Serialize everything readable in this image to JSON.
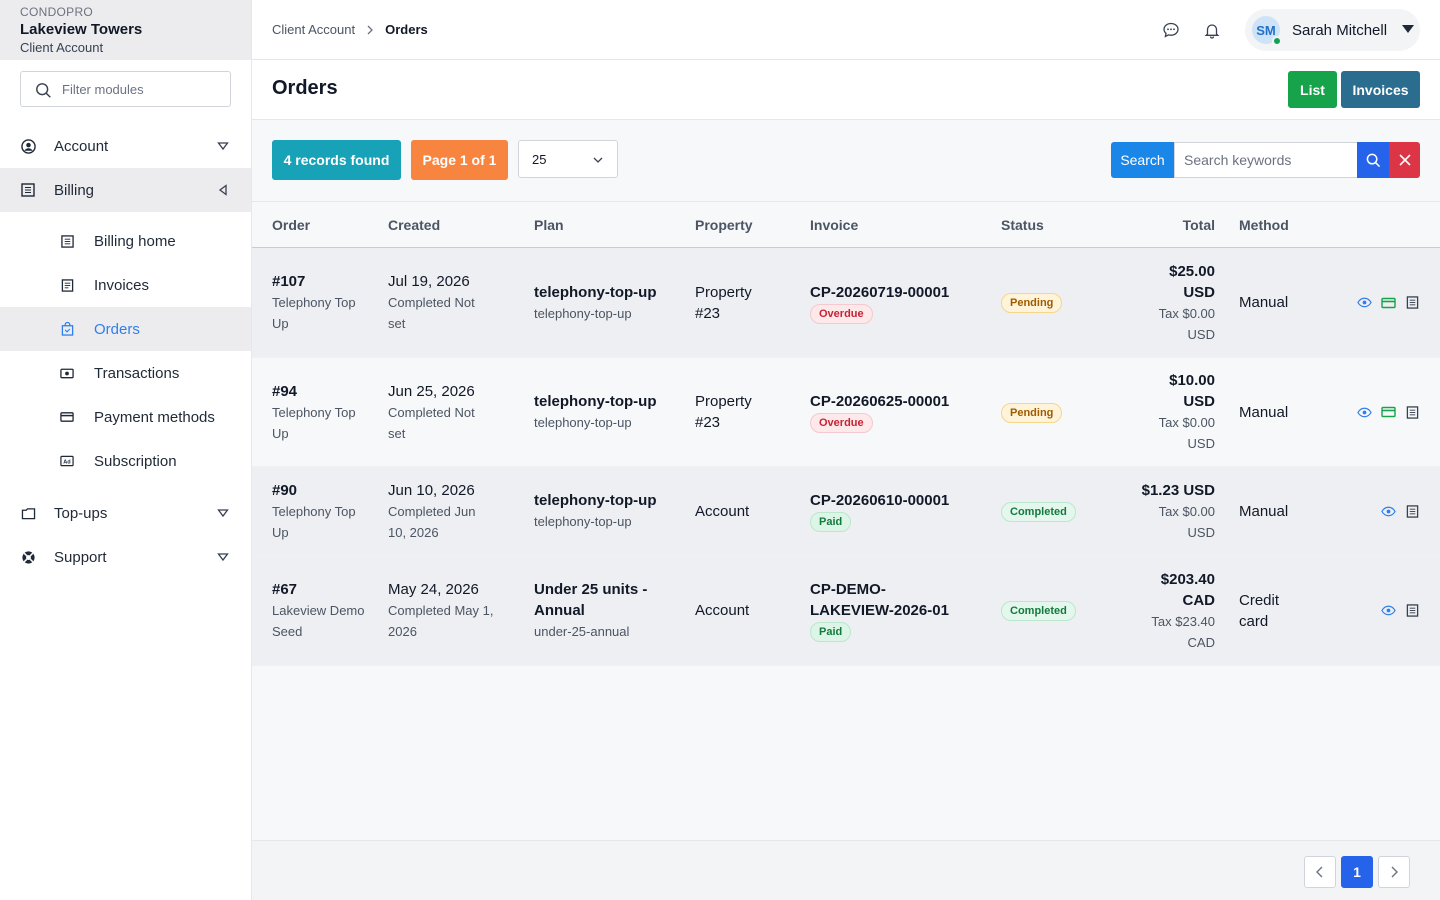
{
  "brand": {
    "org": "CONDOPRO",
    "name": "Lakeview Towers",
    "sub": "Client Account"
  },
  "sidebar": {
    "filter_placeholder": "Filter modules",
    "items": [
      {
        "label": "Account",
        "icon": "user-circle-icon"
      },
      {
        "label": "Billing",
        "icon": "ledger-icon"
      },
      {
        "label": "Top-ups",
        "icon": "folder-icon"
      },
      {
        "label": "Support",
        "icon": "life-ring-icon"
      }
    ],
    "billing_sub": [
      {
        "label": "Billing home",
        "icon": "ledger-icon"
      },
      {
        "label": "Invoices",
        "icon": "invoice-icon"
      },
      {
        "label": "Orders",
        "icon": "bag-icon"
      },
      {
        "label": "Transactions",
        "icon": "cash-icon"
      },
      {
        "label": "Payment methods",
        "icon": "credit-card-icon"
      },
      {
        "label": "Subscription",
        "icon": "ad-icon"
      }
    ]
  },
  "topbar": {
    "breadcrumb": [
      "Client Account",
      "Orders"
    ],
    "user_initials": "SM",
    "user_name": "Sarah Mitchell"
  },
  "page": {
    "title": "Orders",
    "list_label": "List",
    "invoices_label": "Invoices"
  },
  "toolbar": {
    "records": "4 records found",
    "page": "Page 1 of 1",
    "per_page": "25",
    "search_label": "Search",
    "search_placeholder": "Search keywords"
  },
  "table": {
    "headers": [
      "Order",
      "Created",
      "Plan",
      "Property",
      "Invoice",
      "Status",
      "Total",
      "Method"
    ],
    "rows": [
      {
        "order": "#107",
        "order_desc": "Telephony Top Up",
        "created": "Jul 19, 2026",
        "created_sub": "Completed Not set",
        "plan": "telephony-top-up",
        "plan_sub": "telephony-top-up",
        "property": "Property #23",
        "invoice": "CP-20260719-00001",
        "invoice_badge": "Overdue",
        "status": "Pending",
        "total": "$25.00 USD",
        "tax": "Tax $0.00 USD",
        "method": "Manual"
      },
      {
        "order": "#94",
        "order_desc": "Telephony Top Up",
        "created": "Jun 25, 2026",
        "created_sub": "Completed Not set",
        "plan": "telephony-top-up",
        "plan_sub": "telephony-top-up",
        "property": "Property #23",
        "invoice": "CP-20260625-00001",
        "invoice_badge": "Overdue",
        "status": "Pending",
        "total": "$10.00 USD",
        "tax": "Tax $0.00 USD",
        "method": "Manual"
      },
      {
        "order": "#90",
        "order_desc": "Telephony Top Up",
        "created": "Jun 10, 2026",
        "created_sub": "Completed Jun 10, 2026",
        "plan": "telephony-top-up",
        "plan_sub": "telephony-top-up",
        "property": "Account",
        "invoice": "CP-20260610-00001",
        "invoice_badge": "Paid",
        "status": "Completed",
        "total": "$1.23 USD",
        "tax": "Tax $0.00 USD",
        "method": "Manual"
      },
      {
        "order": "#67",
        "order_desc": "Lakeview Demo Seed",
        "created": "May 24, 2026",
        "created_sub": "Completed May 1, 2026",
        "plan": "Under 25 units - Annual",
        "plan_sub": "under-25-annual",
        "property": "Account",
        "invoice": "CP-DEMO-LAKEVIEW-2026-01",
        "invoice_badge": "Paid",
        "status": "Completed",
        "total": "$203.40 CAD",
        "tax": "Tax $23.40 CAD",
        "method": "Credit card"
      }
    ]
  },
  "pagination": {
    "current": "1"
  },
  "colors": {
    "accent": "#2f80ed",
    "green": "#16a34a",
    "teal": "#17a2b8",
    "orange": "#f7843f",
    "red": "#dc3545",
    "blue": "#2563eb"
  }
}
